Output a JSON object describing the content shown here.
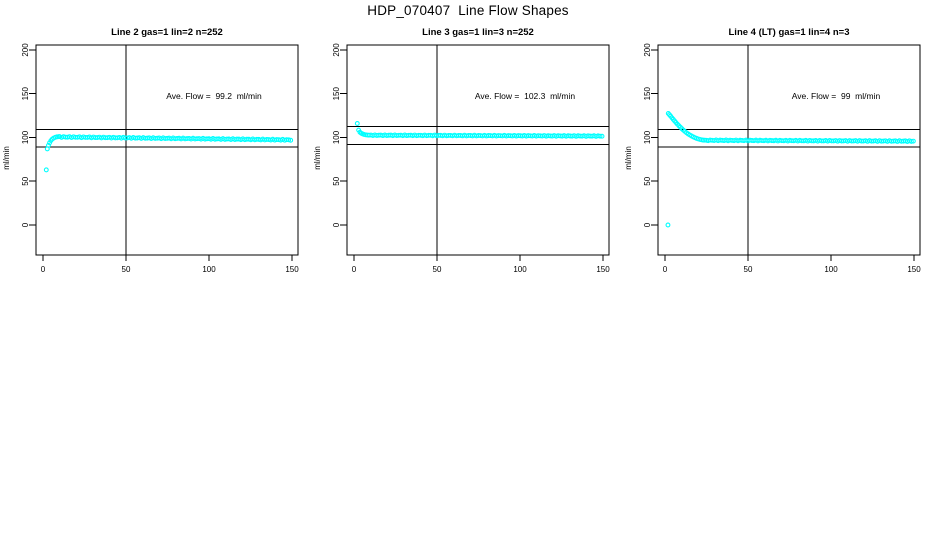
{
  "header": {
    "title": "HDP_070407  Line Flow Shapes"
  },
  "chart_data": [
    {
      "type": "scatter",
      "title": "Line 2 gas=1 lin=2 n=252",
      "annotation": "Ave. Flow =  99.2  ml/min",
      "ave_flow": 99.2,
      "n": 252,
      "xlabel": "",
      "ylabel": "ml/min",
      "xticks": [
        0,
        50,
        100,
        150
      ],
      "yticks": [
        0,
        50,
        100,
        150,
        200
      ],
      "xlim": [
        -4.2,
        153.6
      ],
      "ylim": [
        -34.3,
        205.7
      ],
      "ref_lines": [
        109.1,
        89.3
      ],
      "vline": 50,
      "grid": false,
      "marker": "open-circle",
      "marker_color": "#00FFFF",
      "points": [
        [
          2,
          63
        ],
        [
          2.6,
          87
        ],
        [
          3.3,
          91
        ],
        [
          4,
          94
        ],
        [
          4.8,
          96.5
        ],
        [
          5.6,
          98.2
        ],
        [
          6.5,
          99.4
        ],
        [
          7.4,
          100.2
        ],
        [
          8.4,
          100.7
        ],
        [
          9.4,
          100.9
        ]
      ],
      "band_segments": [
        {
          "x0": 10,
          "x1": 150,
          "step": 1.2,
          "y0": 100.6,
          "y1": 97.2,
          "jitter": 0.5
        }
      ]
    },
    {
      "type": "scatter",
      "title": "Line 3 gas=1 lin=3 n=252",
      "annotation": "Ave. Flow =  102.3  ml/min",
      "ave_flow": 102.3,
      "n": 252,
      "xlabel": "",
      "ylabel": "ml/min",
      "xticks": [
        0,
        50,
        100,
        150
      ],
      "yticks": [
        0,
        50,
        100,
        150,
        200
      ],
      "xlim": [
        -4.2,
        153.6
      ],
      "ylim": [
        -34.3,
        205.7
      ],
      "ref_lines": [
        112.5,
        92.1
      ],
      "vline": 50,
      "grid": false,
      "marker": "open-circle",
      "marker_color": "#00FFFF",
      "points": [
        [
          2,
          116
        ],
        [
          2.8,
          108.5
        ],
        [
          3.6,
          106
        ],
        [
          4.4,
          104.8
        ],
        [
          5.2,
          104.1
        ],
        [
          6,
          103.5
        ],
        [
          7,
          103.1
        ],
        [
          8,
          102.8
        ]
      ],
      "band_segments": [
        {
          "x0": 9,
          "x1": 150,
          "step": 1.2,
          "y0": 102.6,
          "y1": 101.6,
          "jitter": 0.4
        }
      ]
    },
    {
      "type": "scatter",
      "title": "Line 4 (LT) gas=1 lin=4 n=3",
      "annotation": "Ave. Flow =  99  ml/min",
      "ave_flow": 99,
      "n": 3,
      "xlabel": "",
      "ylabel": "ml/min",
      "xticks": [
        0,
        50,
        100,
        150
      ],
      "yticks": [
        0,
        50,
        100,
        150,
        200
      ],
      "xlim": [
        -4.2,
        153.6
      ],
      "ylim": [
        -34.3,
        205.7
      ],
      "ref_lines": [
        108.9,
        89.1
      ],
      "vline": 50,
      "grid": false,
      "marker": "open-circle",
      "marker_color": "#00FFFF",
      "points": [
        [
          1.8,
          0
        ],
        [
          2,
          127.5
        ],
        [
          2.7,
          126
        ],
        [
          3.4,
          124.4
        ],
        [
          4.2,
          122.5
        ],
        [
          5,
          120.7
        ],
        [
          5.8,
          118.9
        ],
        [
          6.6,
          117.1
        ],
        [
          7.5,
          115.2
        ],
        [
          8.4,
          113.4
        ],
        [
          9.3,
          111.7
        ],
        [
          10.2,
          110
        ],
        [
          11.1,
          108.4
        ],
        [
          12,
          106.9
        ],
        [
          13,
          105.4
        ],
        [
          14,
          104
        ],
        [
          15,
          102.8
        ],
        [
          16,
          101.7
        ],
        [
          17,
          100.7
        ],
        [
          18,
          99.8
        ],
        [
          19,
          99
        ],
        [
          20,
          98.4
        ],
        [
          21,
          97.8
        ],
        [
          22,
          97.4
        ],
        [
          23,
          97
        ],
        [
          24,
          96.9
        ],
        [
          25,
          96.8
        ]
      ],
      "band_segments": [
        {
          "x0": 26,
          "x1": 150,
          "step": 1.2,
          "y0": 96.8,
          "y1": 95.8,
          "jitter": 0.45
        }
      ]
    }
  ]
}
